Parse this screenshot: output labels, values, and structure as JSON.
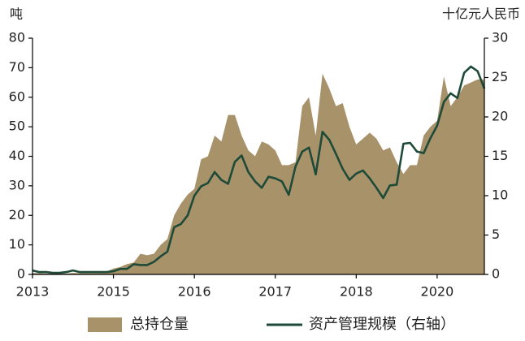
{
  "chart_data": {
    "type": "combo",
    "y_label": "吨",
    "y2_label": "十亿元人民币",
    "categories": [
      "2013",
      null,
      null,
      null,
      null,
      null,
      null,
      null,
      null,
      null,
      null,
      null,
      "2015",
      null,
      null,
      null,
      null,
      null,
      null,
      null,
      null,
      null,
      null,
      null,
      "2016",
      null,
      null,
      null,
      null,
      null,
      null,
      null,
      null,
      null,
      null,
      null,
      "2017",
      null,
      null,
      null,
      null,
      null,
      null,
      null,
      null,
      null,
      null,
      null,
      "2018",
      null,
      null,
      null,
      null,
      null,
      null,
      null,
      null,
      null,
      null,
      null,
      "2020",
      null,
      null,
      null,
      null,
      null,
      null,
      null
    ],
    "series": [
      {
        "name": "总持仓量",
        "type": "area",
        "color": "#a8926a",
        "values": [
          0.5,
          0.4,
          0.3,
          0.3,
          0.3,
          0.3,
          0.5,
          0.4,
          0.5,
          0.5,
          0.5,
          1,
          2,
          2.5,
          3.5,
          4,
          7,
          6.5,
          7,
          10,
          12,
          20,
          24,
          27,
          29,
          39,
          40,
          47,
          45,
          54,
          54,
          47,
          42,
          40,
          45,
          44,
          42,
          37,
          37,
          38,
          57,
          60,
          47,
          68,
          63,
          57,
          58,
          50,
          44,
          46,
          48,
          46,
          42,
          43,
          38,
          34,
          37,
          37,
          47,
          50,
          52,
          67,
          57,
          60,
          64,
          65,
          66,
          66
        ]
      },
      {
        "name": "资产管理规模（右轴）",
        "type": "line",
        "axis": "y2",
        "color": "#1e4a38",
        "values": [
          0.5,
          0.3,
          0.3,
          0.2,
          0.2,
          0.3,
          0.5,
          0.3,
          0.3,
          0.3,
          0.3,
          0.3,
          0.4,
          0.7,
          0.7,
          1.3,
          1.2,
          1.2,
          1.6,
          2.3,
          2.9,
          6,
          6.4,
          7.5,
          10,
          11.2,
          11.6,
          13,
          12,
          11.5,
          14.3,
          15.1,
          13,
          11.8,
          11,
          12.4,
          12.2,
          11.8,
          10.1,
          13.7,
          15.6,
          16.1,
          12.7,
          18.1,
          17.1,
          15.3,
          13.4,
          12,
          12.8,
          13.2,
          12.2,
          11,
          9.7,
          11.3,
          11.4,
          16.6,
          16.7,
          15.6,
          15.4,
          17.3,
          18.9,
          21.9,
          23,
          22.4,
          25.6,
          26.4,
          25.8,
          23.6
        ]
      }
    ],
    "ylim": [
      0,
      80
    ],
    "yticks": [
      0,
      10,
      20,
      30,
      40,
      50,
      60,
      70,
      80
    ],
    "y2lim": [
      0,
      30
    ],
    "y2ticks": [
      0,
      5,
      10,
      15,
      20,
      25,
      30
    ]
  }
}
